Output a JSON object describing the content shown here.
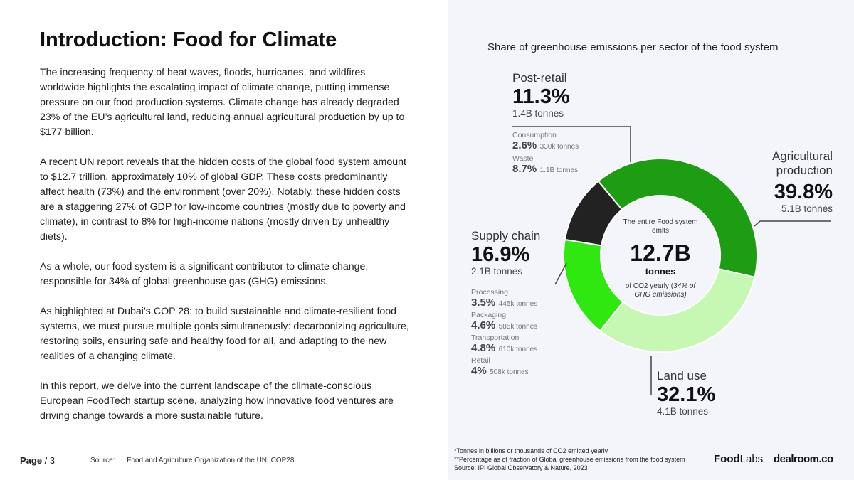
{
  "page": {
    "title": "Introduction: Food for Climate",
    "paragraphs": [
      "The increasing frequency of heat waves, floods, hurricanes, and wildfires worldwide highlights the escalating impact of climate change, putting immense pressure on our food production systems. Climate change has already degraded 23% of the EU’s agricultural land, reducing annual agricultural production by up to $177 billion.",
      "A recent UN report reveals that the hidden costs of the global food system amount to $12.7 trillion, approximately 10% of global GDP. These costs predominantly affect health (73%) and the environment (over 20%). Notably, these hidden costs are a staggering 27% of GDP for low-income countries (mostly due to poverty and climate), in contrast to 8% for high-income nations (mostly driven by unhealthy diets).",
      "As a whole, our food system is a significant contributor to climate change, responsible for 34% of global greenhouse gas (GHG) emissions.",
      "As highlighted at Dubai’s COP 28: to build sustainable and climate-resilient food systems, we must pursue multiple goals simultaneously: decarbonizing agriculture, restoring soils, ensuring safe and healthy food for all, and adapting to the new realities of a changing climate.",
      "In this report, we delve into the current landscape of the climate-conscious European FoodTech startup scene, analyzing how innovative food ventures are driving change towards a more sustainable future."
    ],
    "page_label": "Page",
    "page_number": "/ 3",
    "source_label": "Source:",
    "source_text": "Food and Agriculture Organization of the UN,  COP28"
  },
  "chart_data": {
    "type": "pie",
    "title": "Share of greenhouse emissions per sector of the food system",
    "center": {
      "line1": "The entire Food system emits",
      "value": "12.7B",
      "unit": "tonnes",
      "line3": "of CO2 yearly (",
      "line3_italic": "34% of GHG emissions)"
    },
    "slices": [
      {
        "name": "Agricultural production",
        "pct": 39.8,
        "pct_label": "39.8%",
        "amount": "5.1B tonnes",
        "color": "#1d9e12"
      },
      {
        "name": "Land use",
        "pct": 32.1,
        "pct_label": "32.1%",
        "amount": "4.1B tonnes",
        "color": "#c6f7b3"
      },
      {
        "name": "Supply chain",
        "pct": 16.9,
        "pct_label": "16.9%",
        "amount": "2.1B tonnes",
        "color": "#2ee80f"
      },
      {
        "name": "Post-retail",
        "pct": 11.3,
        "pct_label": "11.3%",
        "amount": "1.4B tonnes",
        "color": "#222222"
      }
    ],
    "post_retail_breakdown": [
      {
        "name": "Consumption",
        "pct": "2.6%",
        "amount": "330k tonnes"
      },
      {
        "name": "Waste",
        "pct": "8.7%",
        "amount": "1.1B tonnes"
      }
    ],
    "supply_chain_breakdown": [
      {
        "name": "Processing",
        "pct": "3.5%",
        "amount": "445k tonnes"
      },
      {
        "name": "Packaging",
        "pct": "4.6%",
        "amount": "585k tonnes"
      },
      {
        "name": "Transportation",
        "pct": "4.8%",
        "amount": "610k tonnes"
      },
      {
        "name": "Retail",
        "pct": "4%",
        "amount": "508k tonnes"
      }
    ],
    "footnotes": [
      "*Tonnes in billions or thousands of CO2 emitted yearly",
      "**Percentage as of fraction of Global greenhouse emissions from the food system",
      "Source: IPI Global Observatory & Nature, 2023"
    ]
  },
  "logos": {
    "foodlabs_bold": "Food",
    "foodlabs_light": "Labs",
    "dealroom": "dealroom.co"
  }
}
